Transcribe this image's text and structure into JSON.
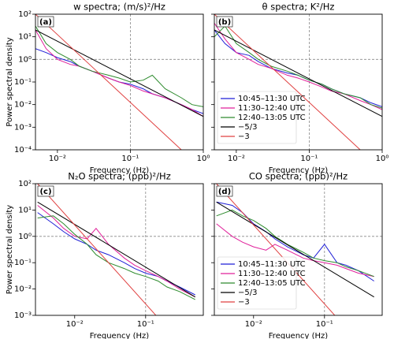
{
  "chart_data": [
    {
      "type": "line",
      "title": "w spectra; (m/s)²/Hz",
      "panel_label": "(a)",
      "xlabel": "Frequency (Hz)",
      "ylabel": "Power spectral density",
      "xscale": "log",
      "yscale": "log",
      "xlim": [
        0.005,
        1
      ],
      "ylim": [
        0.0001,
        100
      ],
      "xticks": [
        {
          "value": 0.01,
          "label": "10⁻²"
        },
        {
          "value": 0.1,
          "label": "10⁻¹"
        },
        {
          "value": 1,
          "label": "10⁰"
        }
      ],
      "yticks": [
        {
          "value": 0.0001,
          "label": "10⁻⁴"
        },
        {
          "value": 0.001,
          "label": "10⁻³"
        },
        {
          "value": 0.01,
          "label": "10⁻²"
        },
        {
          "value": 0.1,
          "label": "10⁻¹"
        },
        {
          "value": 1,
          "label": "10⁰"
        },
        {
          "value": 10,
          "label": "10¹"
        },
        {
          "value": 100,
          "label": "10²"
        }
      ],
      "hline": 1,
      "vline": 0.1,
      "x": [
        0.005,
        0.007,
        0.01,
        0.015,
        0.02,
        0.03,
        0.05,
        0.07,
        0.1,
        0.15,
        0.2,
        0.3,
        0.5,
        0.7,
        1.0
      ],
      "series": [
        {
          "color": "#1f1fd6",
          "values": [
            3,
            2,
            1.2,
            0.8,
            0.5,
            0.3,
            0.15,
            0.1,
            0.08,
            0.05,
            0.03,
            0.02,
            0.01,
            0.006,
            0.004
          ]
        },
        {
          "color": "#e0209a",
          "values": [
            20,
            3,
            1,
            0.6,
            0.5,
            0.3,
            0.15,
            0.1,
            0.07,
            0.04,
            0.03,
            0.02,
            0.01,
            0.006,
            0.003
          ]
        },
        {
          "color": "#2e8b2e",
          "values": [
            30,
            5,
            2,
            1,
            0.5,
            0.3,
            0.2,
            0.15,
            0.1,
            0.12,
            0.2,
            0.05,
            0.02,
            0.01,
            0.008
          ]
        }
      ],
      "reference_lines": [
        {
          "color": "#000000",
          "x": [
            0.005,
            1
          ],
          "values": [
            20,
            0.003
          ]
        },
        {
          "color": "#e04040",
          "x": [
            0.005,
            0.5
          ],
          "values": [
            100,
            0.0001
          ]
        }
      ]
    },
    {
      "type": "line",
      "title": "θ spectra; K²/Hz",
      "panel_label": "(b)",
      "xlabel": "Frequency (Hz)",
      "xscale": "log",
      "yscale": "log",
      "xlim": [
        0.005,
        1
      ],
      "ylim": [
        0.0001,
        100
      ],
      "ytick_labels": false,
      "xticks": [
        {
          "value": 0.01,
          "label": "10⁻²"
        },
        {
          "value": 0.1,
          "label": "10⁻¹"
        },
        {
          "value": 1,
          "label": "10⁰"
        }
      ],
      "yticks": [
        0.0001,
        0.001,
        0.01,
        0.1,
        1,
        10,
        100
      ],
      "hline": 1,
      "vline": 0.1,
      "legend": "lower left",
      "x": [
        0.005,
        0.007,
        0.01,
        0.015,
        0.02,
        0.03,
        0.05,
        0.07,
        0.1,
        0.15,
        0.2,
        0.3,
        0.5,
        0.7,
        1.0
      ],
      "series": [
        {
          "name": "10:45–11:30 UTC",
          "color": "#1f1fd6",
          "values": [
            20,
            5,
            2,
            1.5,
            0.8,
            0.4,
            0.25,
            0.2,
            0.12,
            0.08,
            0.05,
            0.03,
            0.02,
            0.012,
            0.008
          ]
        },
        {
          "name": "11:30–12:40 UTC",
          "color": "#e0209a",
          "values": [
            40,
            8,
            2,
            1,
            0.6,
            0.4,
            0.2,
            0.15,
            0.1,
            0.06,
            0.04,
            0.03,
            0.015,
            0.01,
            0.006
          ]
        },
        {
          "name": "12:40–13:05 UTC",
          "color": "#2e8b2e",
          "values": [
            10,
            30,
            5,
            2,
            1,
            0.5,
            0.3,
            0.2,
            0.12,
            0.08,
            0.05,
            0.03,
            0.02,
            0.01,
            0.007
          ]
        }
      ],
      "reference_lines": [
        {
          "name": "−5/3",
          "color": "#000000",
          "x": [
            0.005,
            1
          ],
          "values": [
            20,
            0.003
          ]
        },
        {
          "name": "−3",
          "color": "#e04040",
          "x": [
            0.005,
            0.5
          ],
          "values": [
            100,
            0.0001
          ]
        }
      ]
    },
    {
      "type": "line",
      "title": "N₂O spectra; (ppb)²/Hz",
      "panel_label": "(c)",
      "xlabel": "Frequency (Hz)",
      "ylabel": "Power spectral density",
      "xscale": "log",
      "yscale": "log",
      "xlim": [
        0.0028,
        0.65
      ],
      "ylim": [
        0.001,
        100
      ],
      "xticks": [
        {
          "value": 0.01,
          "label": "10⁻²"
        },
        {
          "value": 0.1,
          "label": "10⁻¹"
        }
      ],
      "yticks": [
        {
          "value": 0.001,
          "label": "10⁻³"
        },
        {
          "value": 0.01,
          "label": "10⁻²"
        },
        {
          "value": 0.1,
          "label": "10⁻¹"
        },
        {
          "value": 1,
          "label": "10⁰"
        },
        {
          "value": 10,
          "label": "10¹"
        },
        {
          "value": 100,
          "label": "10²"
        }
      ],
      "hline": 1,
      "vline": 0.1,
      "x": [
        0.003,
        0.005,
        0.007,
        0.01,
        0.015,
        0.02,
        0.03,
        0.05,
        0.07,
        0.1,
        0.15,
        0.2,
        0.3,
        0.5
      ],
      "series": [
        {
          "color": "#1f1fd6",
          "values": [
            8,
            3,
            1.5,
            0.8,
            0.5,
            0.3,
            0.2,
            0.1,
            0.06,
            0.04,
            0.03,
            0.02,
            0.012,
            0.006
          ]
        },
        {
          "color": "#e0209a",
          "values": [
            15,
            5,
            2,
            1,
            0.8,
            2,
            0.5,
            0.15,
            0.08,
            0.05,
            0.03,
            0.02,
            0.01,
            0.005
          ]
        },
        {
          "color": "#2e8b2e",
          "values": [
            5,
            6,
            3,
            1.2,
            0.5,
            0.2,
            0.1,
            0.06,
            0.04,
            0.03,
            0.02,
            0.012,
            0.008,
            0.004
          ]
        }
      ],
      "reference_lines": [
        {
          "color": "#000000",
          "x": [
            0.003,
            0.5
          ],
          "values": [
            20,
            0.005
          ]
        },
        {
          "color": "#e04040",
          "x": [
            0.003,
            0.15
          ],
          "values": [
            100,
            0.0008
          ]
        }
      ]
    },
    {
      "type": "line",
      "title": "CO spectra; (ppb)²/Hz",
      "panel_label": "(d)",
      "xlabel": "Frequency (Hz)",
      "xscale": "log",
      "yscale": "log",
      "xlim": [
        0.0028,
        0.65
      ],
      "ylim": [
        0.001,
        100
      ],
      "ytick_labels": false,
      "xticks": [
        {
          "value": 0.01,
          "label": "10⁻²"
        },
        {
          "value": 0.1,
          "label": "10⁻¹"
        }
      ],
      "yticks": [
        0.001,
        0.01,
        0.1,
        1,
        10,
        100
      ],
      "hline": 1,
      "vline": 0.1,
      "legend": "lower left",
      "x": [
        0.003,
        0.005,
        0.007,
        0.01,
        0.015,
        0.02,
        0.03,
        0.05,
        0.07,
        0.1,
        0.15,
        0.2,
        0.3,
        0.5
      ],
      "series": [
        {
          "name": "10:45–11:30 UTC",
          "color": "#1f1fd6",
          "values": [
            20,
            15,
            8,
            3,
            1.5,
            0.8,
            0.4,
            0.2,
            0.15,
            0.5,
            0.1,
            0.08,
            0.05,
            0.02
          ]
        },
        {
          "name": "11:30–12:40 UTC",
          "color": "#e0209a",
          "values": [
            3,
            1,
            0.6,
            0.4,
            0.3,
            0.5,
            0.3,
            0.15,
            0.12,
            0.1,
            0.08,
            0.06,
            0.04,
            0.03
          ]
        },
        {
          "name": "12:40–13:05 UTC",
          "color": "#2e8b2e",
          "values": [
            6,
            10,
            6,
            4,
            2,
            1,
            0.5,
            0.25,
            0.15,
            0.12,
            0.1,
            0.07,
            0.05,
            0.03
          ]
        }
      ],
      "reference_lines": [
        {
          "name": "−5/3",
          "color": "#000000",
          "x": [
            0.003,
            0.5
          ],
          "values": [
            20,
            0.005
          ]
        },
        {
          "name": "−3",
          "color": "#e04040",
          "x": [
            0.003,
            0.15
          ],
          "values": [
            100,
            0.0008
          ]
        }
      ]
    }
  ]
}
